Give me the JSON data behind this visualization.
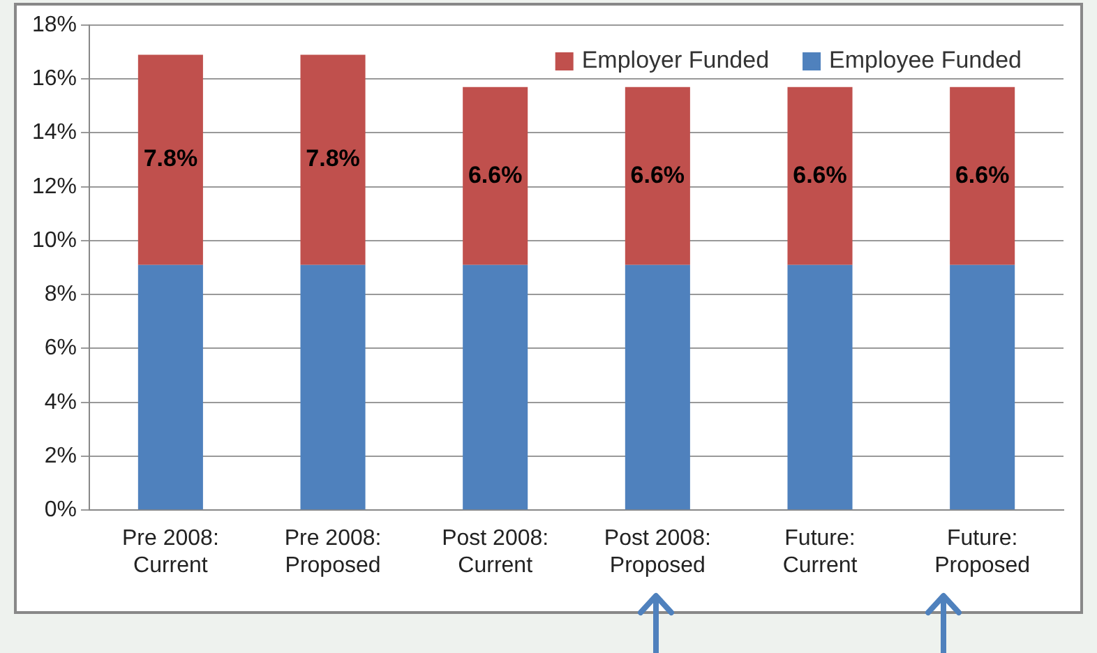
{
  "chart_data": {
    "type": "bar",
    "stacked": true,
    "categories": [
      "Pre 2008: Current",
      "Pre 2008: Proposed",
      "Post 2008: Current",
      "Post 2008: Proposed",
      "Future: Current",
      "Future: Proposed"
    ],
    "series": [
      {
        "name": "Employee Funded",
        "color": "#4f81bd",
        "values": [
          9.1,
          9.1,
          9.1,
          9.1,
          9.1,
          9.1
        ]
      },
      {
        "name": "Employer Funded",
        "color": "#c0504d",
        "values": [
          7.8,
          7.8,
          6.6,
          6.6,
          6.6,
          6.6
        ],
        "value_labels": [
          "7.8%",
          "7.8%",
          "6.6%",
          "6.6%",
          "6.6%",
          "6.6%"
        ]
      }
    ],
    "ylim": [
      0,
      18
    ],
    "yticks": [
      {
        "value": 0,
        "label": "0%"
      },
      {
        "value": 2,
        "label": "2%"
      },
      {
        "value": 4,
        "label": "4%"
      },
      {
        "value": 6,
        "label": "6%"
      },
      {
        "value": 8,
        "label": "8%"
      },
      {
        "value": 10,
        "label": "10%"
      },
      {
        "value": 12,
        "label": "12%"
      },
      {
        "value": 14,
        "label": "14%"
      },
      {
        "value": 16,
        "label": "16%"
      },
      {
        "value": 18,
        "label": "18%"
      }
    ],
    "grid": "y",
    "legend": "top right"
  }
}
